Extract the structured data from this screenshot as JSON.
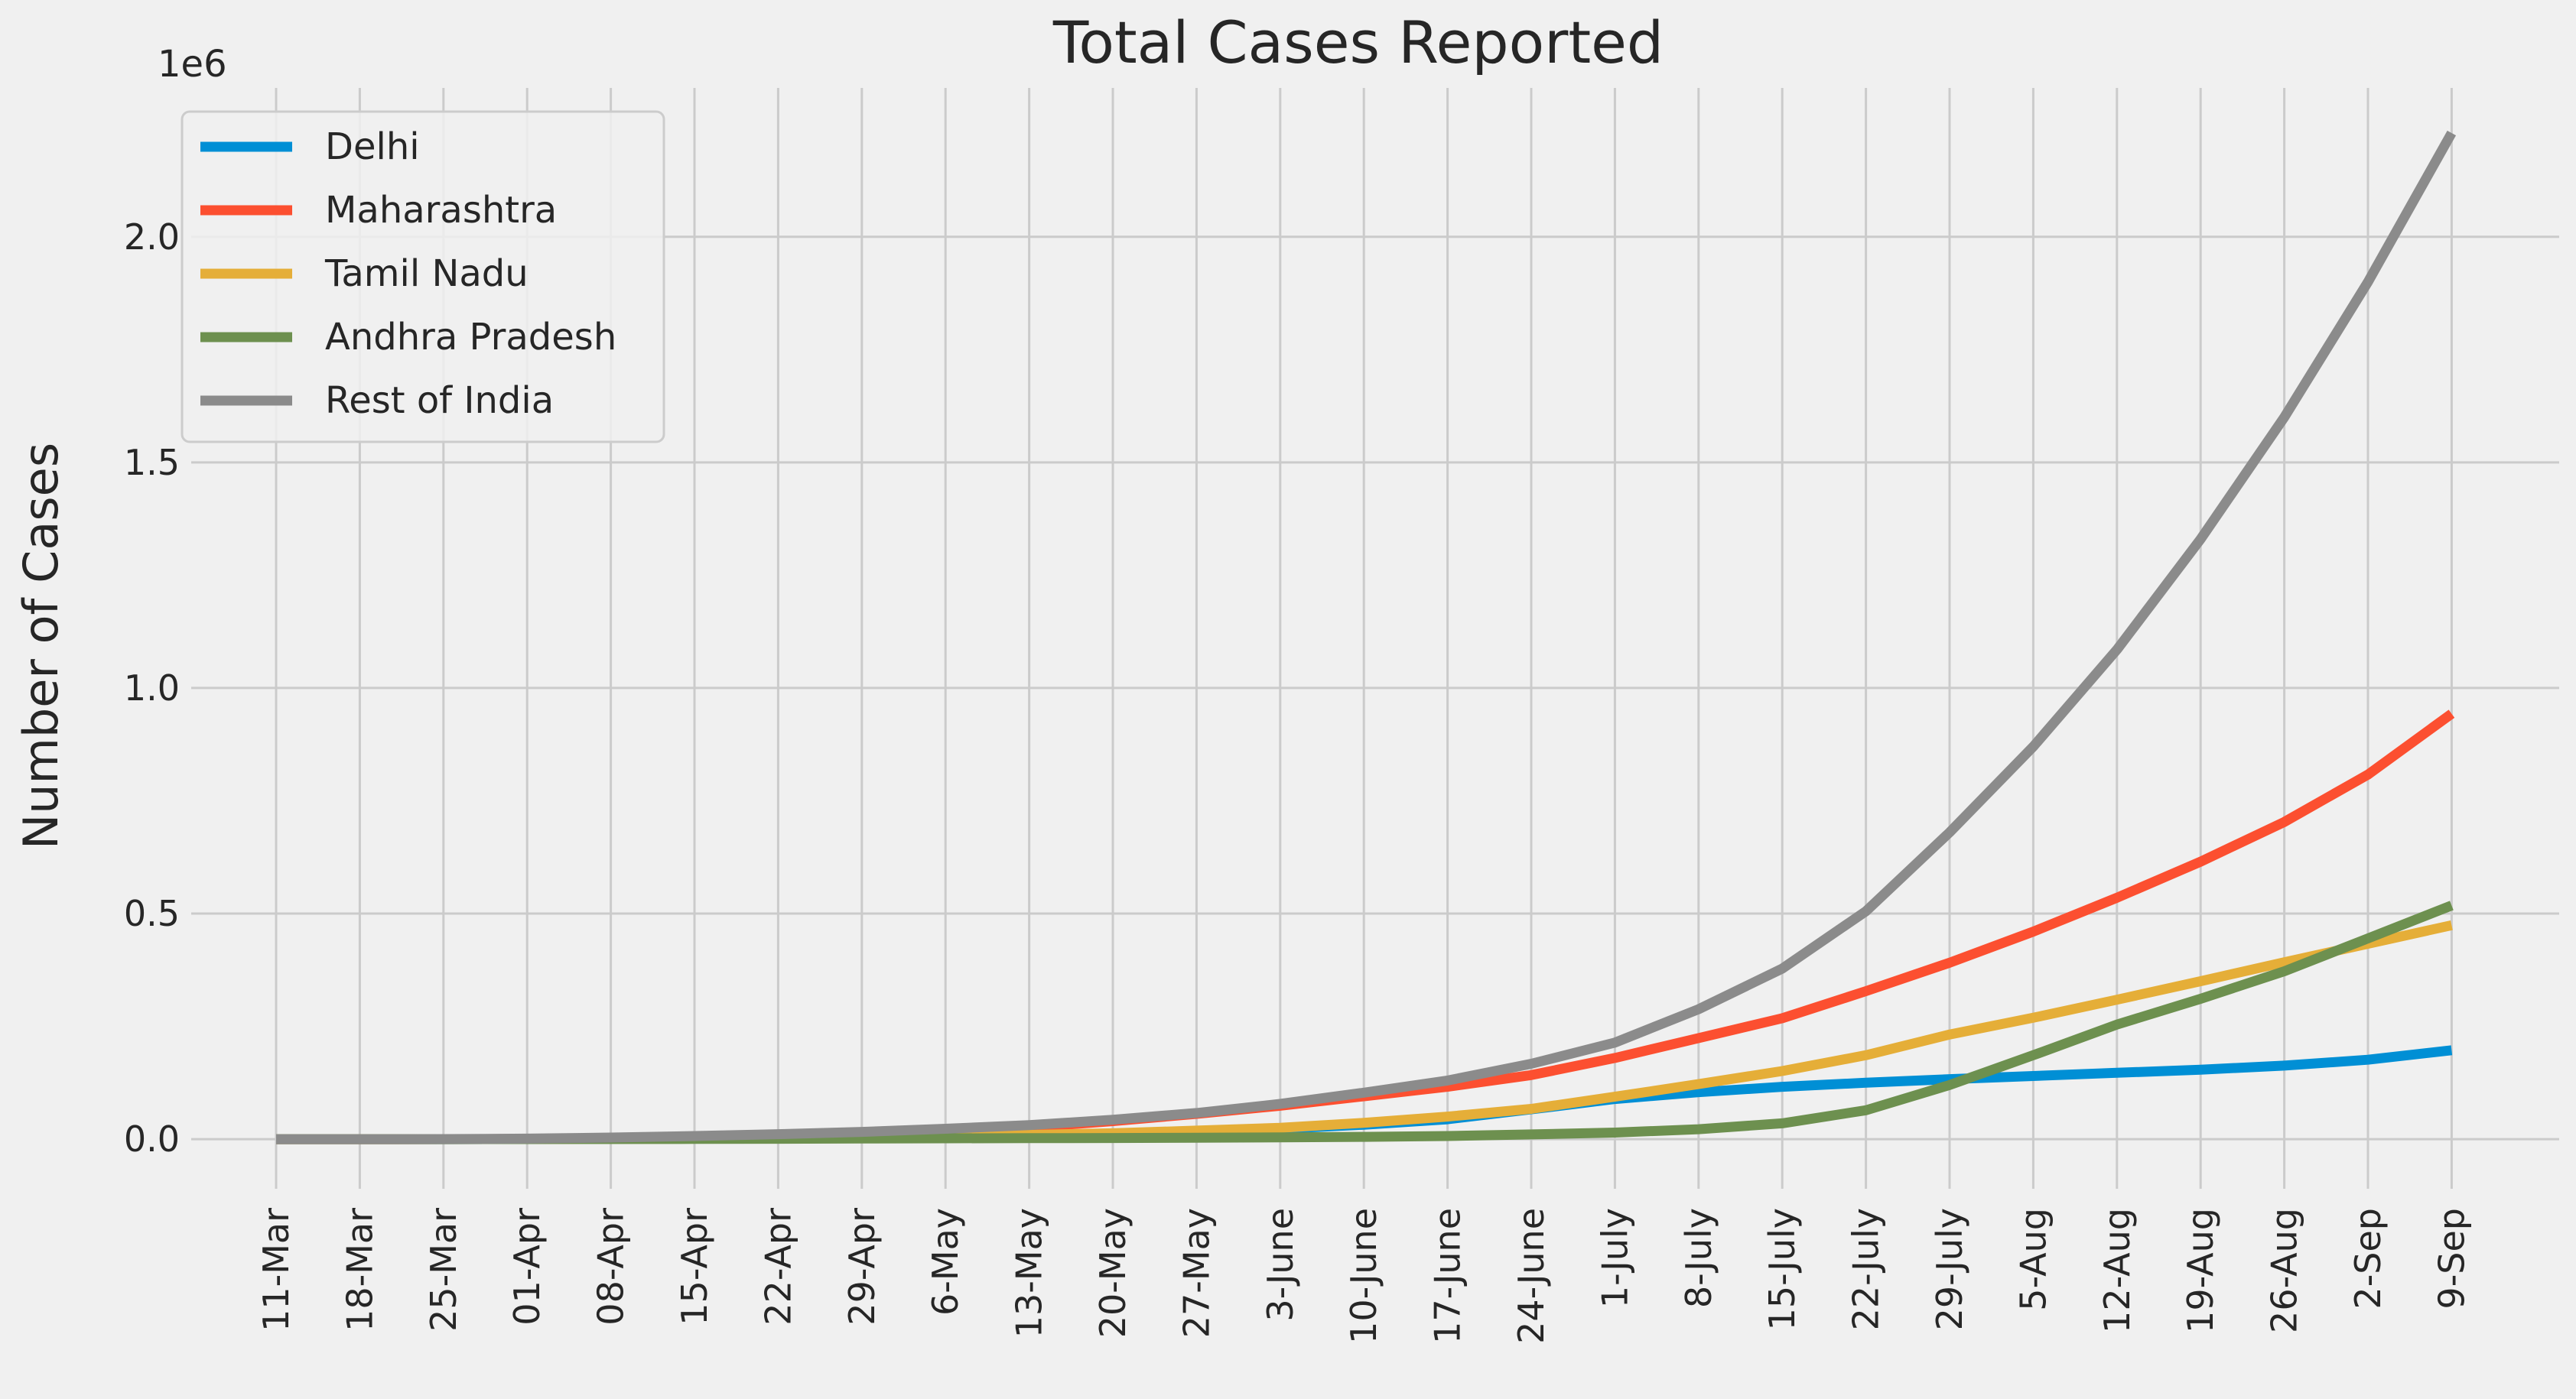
{
  "chart_data": {
    "type": "line",
    "title": "Total Cases Reported",
    "ylabel": "Number of Cases",
    "xlabel": "",
    "y_offset_label": "1e6",
    "y_scale": 1000000,
    "ylim": [
      -110000,
      2330000
    ],
    "yticks": [
      0,
      500000,
      1000000,
      1500000,
      2000000
    ],
    "ytick_labels": [
      "0.0",
      "0.5",
      "1.0",
      "1.5",
      "2.0"
    ],
    "x_tick_labels": [
      "11-Mar",
      "18-Mar",
      "25-Mar",
      "01-Apr",
      "08-Apr",
      "15-Apr",
      "22-Apr",
      "29-Apr",
      "6-May",
      "13-May",
      "20-May",
      "27-May",
      "3-June",
      "10-June",
      "17-June",
      "24-June",
      "1-July",
      "8-July",
      "15-July",
      "22-July",
      "29-July",
      "5-Aug",
      "12-Aug",
      "19-Aug",
      "26-Aug",
      "2-Sep",
      "9-Sep"
    ],
    "grid": true,
    "legend_position": "top-left",
    "series": [
      {
        "name": "Delhi",
        "color": "#008fd5",
        "values": [
          0,
          0,
          0,
          100,
          600,
          1600,
          2400,
          3500,
          5500,
          8500,
          12000,
          16000,
          23000,
          32000,
          44000,
          66000,
          89000,
          104000,
          116000,
          125000,
          133000,
          140000,
          147000,
          154000,
          163000,
          176000,
          197000
        ]
      },
      {
        "name": "Maharashtra",
        "color": "#fc4f30",
        "values": [
          0,
          0,
          100,
          300,
          1300,
          3000,
          5600,
          9900,
          18000,
          26000,
          40000,
          56000,
          74000,
          95000,
          116000,
          142000,
          180000,
          224000,
          268000,
          328000,
          391000,
          460000,
          535000,
          615000,
          703000,
          808000,
          943000
        ]
      },
      {
        "name": "Tamil Nadu",
        "color": "#e5ae38",
        "values": [
          0,
          0,
          0,
          200,
          700,
          1200,
          1600,
          2300,
          4500,
          9500,
          13000,
          19000,
          25000,
          36000,
          50000,
          67000,
          94000,
          122000,
          151000,
          186000,
          232000,
          269000,
          309000,
          350000,
          392000,
          433000,
          474000
        ]
      },
      {
        "name": "Andhra Pradesh",
        "color": "#6d904f",
        "values": [
          0,
          0,
          0,
          100,
          300,
          500,
          800,
          1300,
          1800,
          2100,
          2500,
          3000,
          4000,
          5000,
          7000,
          10500,
          14500,
          22000,
          35000,
          64000,
          120000,
          186000,
          254000,
          311000,
          372000,
          445000,
          518000
        ]
      },
      {
        "name": "Rest of India",
        "color": "#8b8b8b",
        "values": [
          0,
          0,
          200,
          1200,
          3500,
          7000,
          11000,
          16000,
          23000,
          31000,
          43000,
          58000,
          78000,
          103000,
          130000,
          167000,
          214000,
          288000,
          378000,
          505000,
          680000,
          870000,
          1085000,
          1330000,
          1600000,
          1900000,
          2230000
        ]
      }
    ]
  }
}
